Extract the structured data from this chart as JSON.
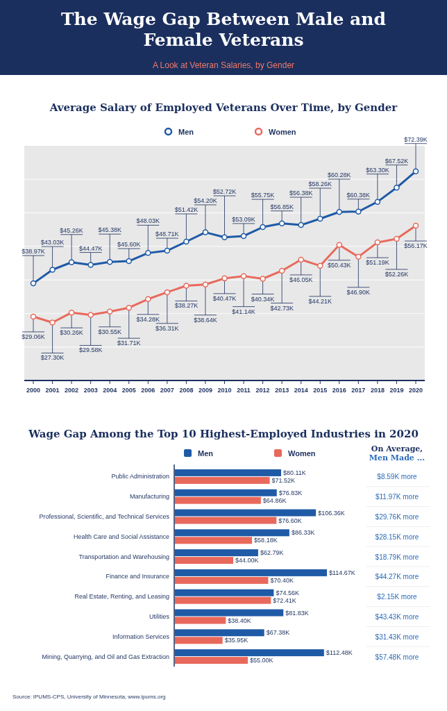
{
  "chart_data": [
    {
      "type": "other",
      "title": "The Wage Gap Between Male and Female Veterans",
      "subtitle": "A Look at Veteran Salaries, by Gender"
    },
    {
      "type": "line",
      "title": "Average Salary of Employed Veterans Over Time, by Gender",
      "categories": [
        "2000",
        "2001",
        "2002",
        "2003",
        "2004",
        "2005",
        "2006",
        "2007",
        "2008",
        "2009",
        "2010",
        "2011",
        "2012",
        "2013",
        "2014",
        "2015",
        "2016",
        "2017",
        "2018",
        "2019",
        "2020"
      ],
      "series": [
        {
          "name": "Men",
          "color": "#1f5aa6",
          "values": [
            38.97,
            43.03,
            45.26,
            44.47,
            45.38,
            45.6,
            48.03,
            48.71,
            51.42,
            54.2,
            52.72,
            53.09,
            55.75,
            56.85,
            56.38,
            58.26,
            60.28,
            60.38,
            63.3,
            67.52,
            72.39
          ],
          "value_labels": [
            "$38.97K",
            "$43.03K",
            "$45.26K",
            "$44.47K",
            "$45.38K",
            "$45.60K",
            "$48.03K",
            "$48.71K",
            "$51.42K",
            "$54.20K",
            "$52.72K",
            "$53.09K",
            "$55.75K",
            "$56.85K",
            "$56.38K",
            "$58.26K",
            "$60.28K",
            "$60.38K",
            "$63.30K",
            "$67.52K",
            "$72.39K"
          ]
        },
        {
          "name": "Women",
          "color": "#e8695c",
          "values": [
            29.06,
            27.3,
            30.26,
            29.58,
            30.55,
            31.71,
            34.28,
            36.31,
            38.27,
            38.64,
            40.47,
            41.14,
            40.34,
            42.73,
            46.05,
            44.21,
            50.43,
            46.9,
            51.19,
            52.26,
            56.17
          ],
          "value_labels": [
            "$29.06K",
            "$27.30K",
            "$30.26K",
            "$29.58K",
            "$30.55K",
            "$31.71K",
            "$34.28K",
            "$36.31K",
            "$38.27K",
            "$38.64K",
            "$40.47K",
            "$41.14K",
            "$40.34K",
            "$42.73K",
            "$46.05K",
            "$44.21K",
            "$50.43K",
            "$46.90K",
            "$51.19K",
            "$52.26K",
            "$56.17K"
          ]
        }
      ],
      "ylim": [
        10,
        80
      ],
      "yticks": [
        {
          "value": 20,
          "label": null
        },
        {
          "value": 30,
          "label": null
        },
        {
          "value": 40,
          "label": null
        },
        {
          "value": 50,
          "label": null
        },
        {
          "value": 60,
          "label": null
        },
        {
          "value": 70,
          "label": null
        }
      ],
      "grid": "y",
      "tick_labels": "x",
      "legend": "top",
      "marker": "circle"
    },
    {
      "type": "bar",
      "orientation": "horizontal",
      "title": "Wage Gap Among the Top 10 Highest-Employed Industries in 2020",
      "categories": [
        "Public Administration",
        "Manufacturing",
        "Professional, Scientific, and Technical Services",
        "Health Care and Social Assistance",
        "Transportation and Warehousing",
        "Finance and Insurance",
        "Real Estate, Renting, and Leasing",
        "Utilities",
        "Information Services",
        "Mining, Quarrying, and Oil and Gas Extraction"
      ],
      "series": [
        {
          "name": "Men",
          "color": "#1f5aa6",
          "values": [
            80.11,
            76.83,
            106.36,
            86.33,
            62.79,
            114.67,
            74.56,
            81.83,
            67.38,
            112.48
          ],
          "value_labels": [
            "$80.11K",
            "$76.83K",
            "$106.36K",
            "$86.33K",
            "$62.79K",
            "$114.67K",
            "$74.56K",
            "$81.83K",
            "$67.38K",
            "$112.48K"
          ]
        },
        {
          "name": "Women",
          "color": "#e8695c",
          "values": [
            71.52,
            64.86,
            76.6,
            58.18,
            44.0,
            70.4,
            72.41,
            38.4,
            35.95,
            55.0
          ],
          "value_labels": [
            "$71.52K",
            "$64.86K",
            "$76.60K",
            "$58.18K",
            "$44.00K",
            "$70.40K",
            "$72.41K",
            "$38.40K",
            "$35.95K",
            "$55.00K"
          ]
        }
      ],
      "legend": "top",
      "annotations": [
        "On Average, Men Made ...",
        "$8.59K more",
        "$11.97K more",
        "$29.76K more",
        "$28.15K more",
        "$18.79K more",
        "$44.27K more",
        "$2.15K more",
        "$43.43K more",
        "$31.43K more",
        "$57.48K more",
        "Source: IPUMS-CPS, University of Minnesota, www.ipums.org"
      ]
    }
  ]
}
